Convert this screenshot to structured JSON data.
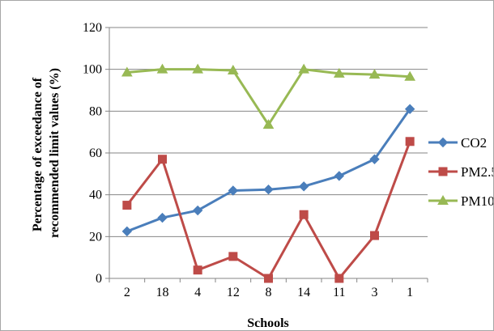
{
  "chart_data": {
    "type": "line",
    "title": "",
    "xlabel": "Schools",
    "ylabel": "Percentage of exceedance of recommended limit values (%)",
    "ylabel_lines": [
      "Percentage of exceedance of",
      "recommended limit values (%)"
    ],
    "categories": [
      "2",
      "18",
      "4",
      "12",
      "8",
      "14",
      "11",
      "3",
      "1"
    ],
    "ylim": [
      0,
      120
    ],
    "yticks": [
      0,
      20,
      40,
      60,
      80,
      100,
      120
    ],
    "grid": true,
    "legend_position": "right",
    "series": [
      {
        "name": "CO2",
        "color": "#4a7ebb",
        "marker": "diamond",
        "values": [
          22.5,
          29,
          32.5,
          42,
          42.5,
          44,
          49,
          57,
          81
        ]
      },
      {
        "name": "PM2.5",
        "color": "#be4b48",
        "marker": "square",
        "values": [
          35,
          57,
          4,
          10.5,
          0,
          30.5,
          0,
          20.5,
          65.5
        ]
      },
      {
        "name": "PM10",
        "color": "#98b954",
        "marker": "triangle",
        "values": [
          98.5,
          100,
          100,
          99.5,
          73.5,
          100,
          98,
          97.5,
          96.5
        ]
      }
    ]
  }
}
